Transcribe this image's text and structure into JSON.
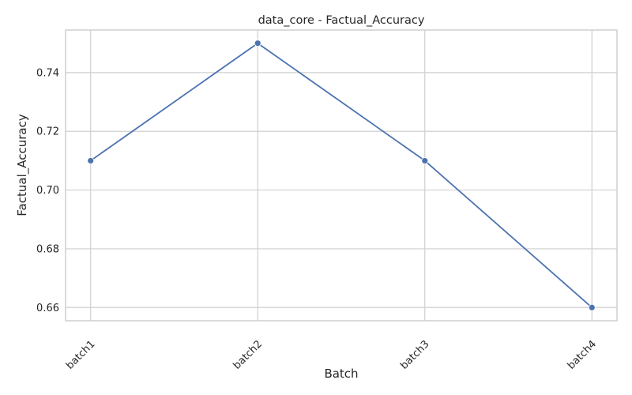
{
  "chart_data": {
    "type": "line",
    "title": "data_core - Factual_Accuracy",
    "xlabel": "Batch",
    "ylabel": "Factual_Accuracy",
    "categories": [
      "batch1",
      "batch2",
      "batch3",
      "batch4"
    ],
    "series": [
      {
        "values": [
          0.71,
          0.75,
          0.71,
          0.66
        ],
        "color": "#4c72b0"
      }
    ],
    "ylim": [
      0.6555,
      0.7545
    ],
    "yticks": [
      "0.66",
      "0.68",
      "0.70",
      "0.72",
      "0.74"
    ],
    "grid": true,
    "marker": "circle"
  }
}
